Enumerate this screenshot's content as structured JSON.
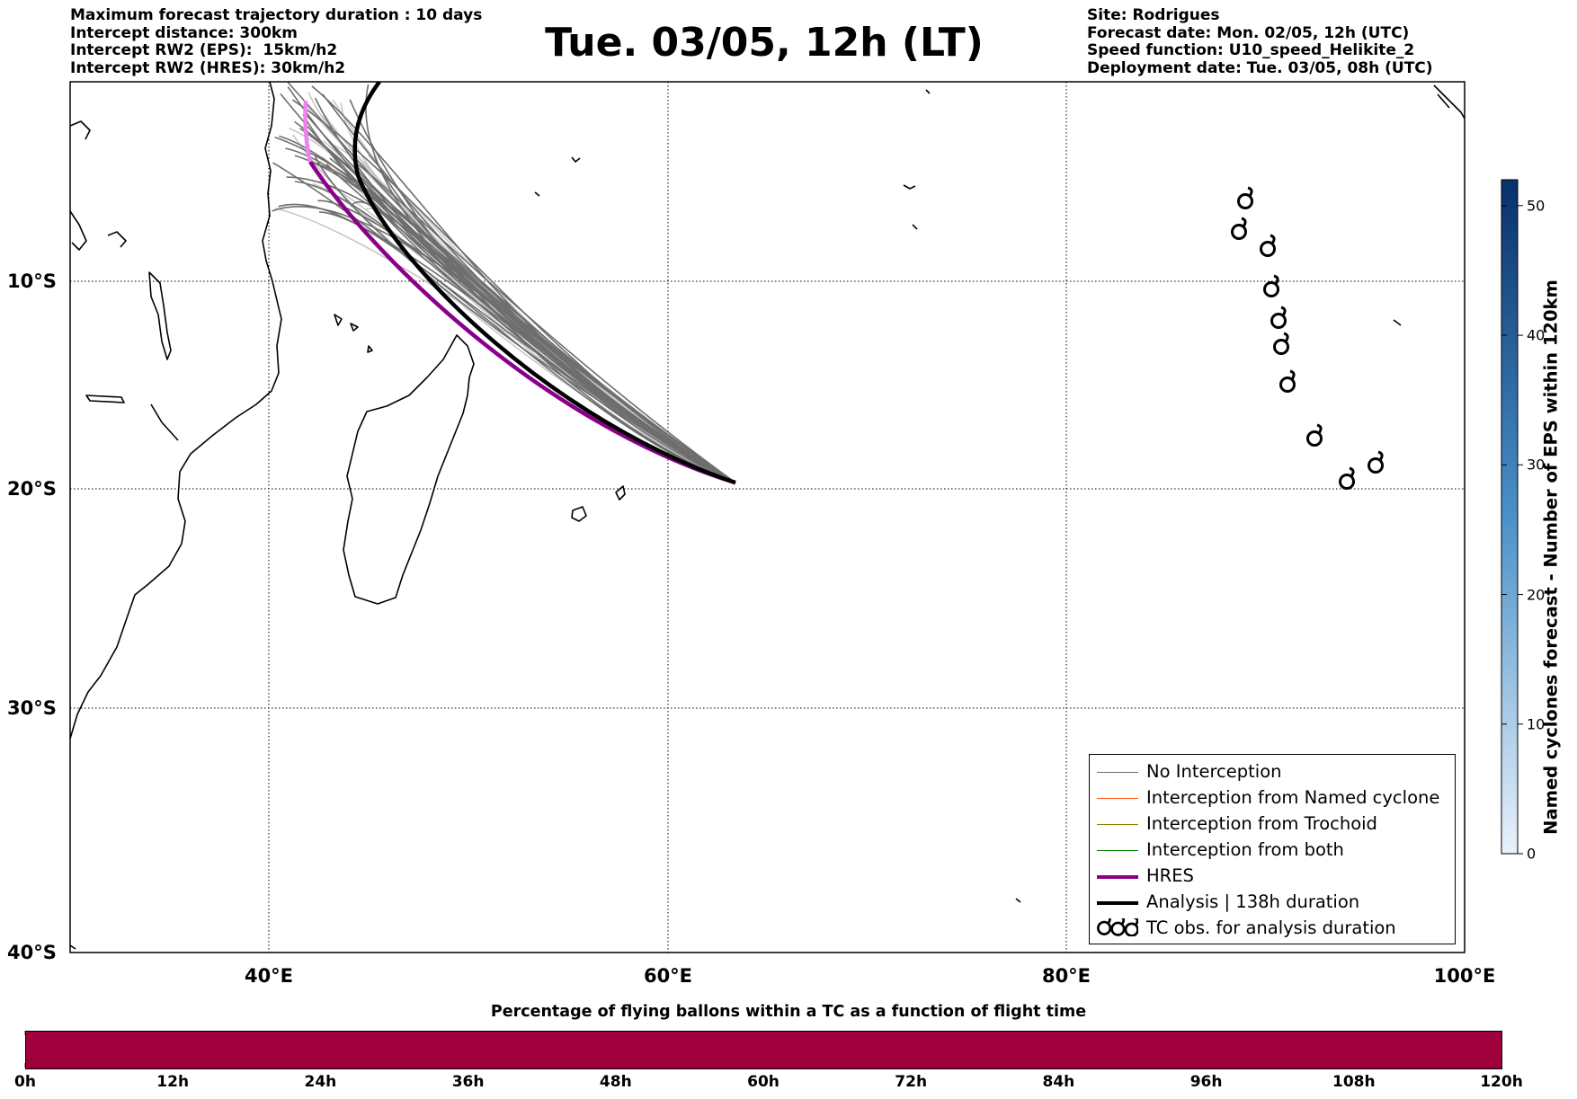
{
  "header": {
    "left_lines": [
      "Maximum forecast trajectory duration : 10 days",
      "Intercept distance: 300km",
      "Intercept RW2 (EPS):  15km/h2",
      "Intercept RW2 (HRES): 30km/h2"
    ],
    "title": "Tue. 03/05, 12h (LT)",
    "right_lines": [
      "Site: Rodrigues",
      "Forecast date: Mon. 02/05, 12h (UTC)",
      "Speed function: U10_speed_Helikite_2",
      "Deployment date: Tue. 03/05, 08h (UTC)"
    ]
  },
  "map": {
    "lat_labels": [
      "10°S",
      "20°S",
      "30°S",
      "40°S"
    ],
    "lon_labels": [
      "40°E",
      "60°E",
      "80°E",
      "100°E"
    ],
    "lat_range": [
      -40,
      0
    ],
    "lon_range": [
      30,
      100
    ],
    "grid": true,
    "deployment_site": {
      "lon": 63.4,
      "lat": -19.7
    },
    "colors": {
      "no_interception": "#6e6e6e",
      "named_cyclone": "#ff5a14",
      "trochoid": "#808000",
      "both": "#008000",
      "hres": "#8b008b",
      "hres_faint": "#ee82ee",
      "analysis": "#000000",
      "eps_faint": "#c8c8c8"
    },
    "tc_obs_symbol": "tropical-cyclone-icon"
  },
  "legend": {
    "items": [
      {
        "label": "No Interception",
        "style": "thin",
        "color": "#6e6e6e"
      },
      {
        "label": "Interception from Named cyclone",
        "style": "thin",
        "color": "#ff5a14"
      },
      {
        "label": "Interception from Trochoid",
        "style": "thin",
        "color": "#808000"
      },
      {
        "label": "Interception from both",
        "style": "thin",
        "color": "#008000"
      },
      {
        "label": "HRES",
        "style": "thick",
        "color": "#8b008b"
      },
      {
        "label": "Analysis | 138h duration",
        "style": "thick",
        "color": "#000000"
      },
      {
        "label": "TC obs. for analysis duration",
        "style": "tc",
        "color": "#000000"
      }
    ]
  },
  "right_colorbar": {
    "title": "Named cyclones forecast - Number of EPS within 120km",
    "ticks": [
      "0",
      "10",
      "20",
      "30",
      "40",
      "50"
    ],
    "range": [
      0,
      52
    ],
    "color_low": "#eaf2fb",
    "color_high": "#08306b"
  },
  "bottom_colorbar": {
    "title": "Percentage of flying ballons within a TC as a function of flight time",
    "labels": [
      "0h",
      "12h",
      "24h",
      "36h",
      "48h",
      "60h",
      "72h",
      "84h",
      "96h",
      "108h",
      "120h"
    ],
    "fill_color": "#a0003c",
    "percentage": 0
  }
}
